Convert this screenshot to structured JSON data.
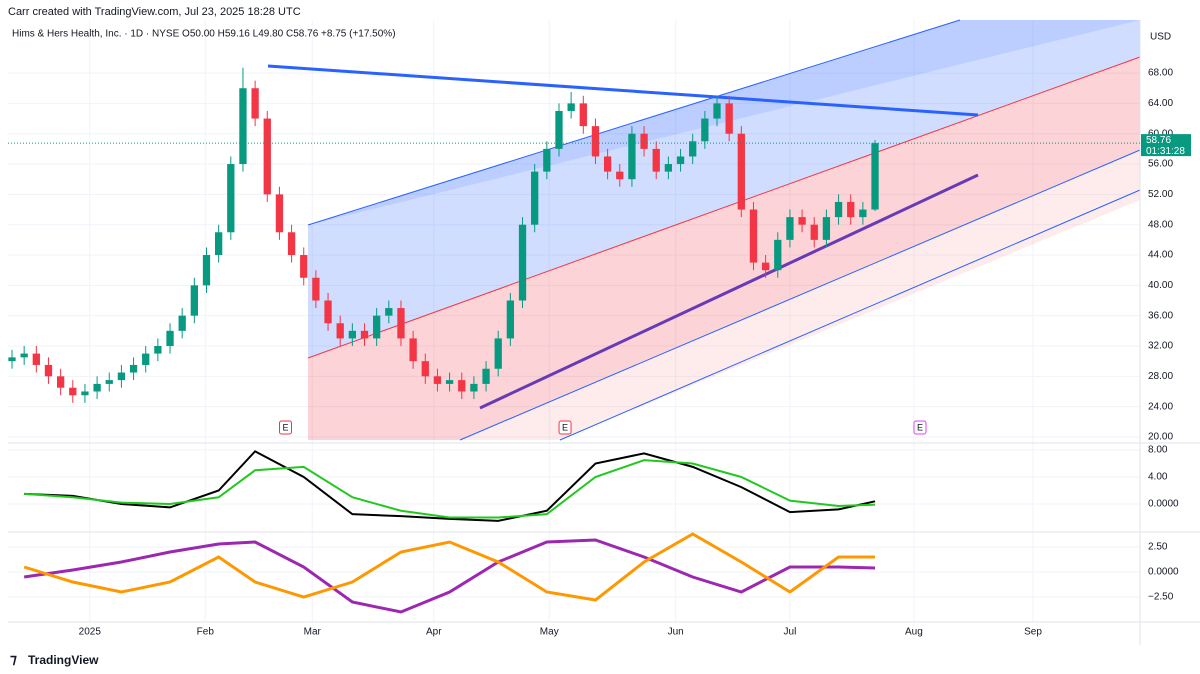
{
  "header": "Carr created with TradingView.com, Jul 23, 2025 18:28 UTC",
  "legend": "Hims & Hers Health, Inc. · 1D · NYSE  O50.00  H59.16  L49.80  C58.76  +8.75 (+17.50%)",
  "currency": "USD",
  "footer": "TradingView",
  "chart_data": {
    "type": "candlestick",
    "xlim": [
      -0.33,
      92.8
    ],
    "xticks": [
      {
        "value": 6.4,
        "label": "2025"
      },
      {
        "value": 15.9,
        "label": "Feb"
      },
      {
        "value": 24.7,
        "label": "Mar"
      },
      {
        "value": 34.7,
        "label": "Apr"
      },
      {
        "value": 44.2,
        "label": "May"
      },
      {
        "value": 54.6,
        "label": "Jun"
      },
      {
        "value": 64.0,
        "label": "Jul"
      },
      {
        "value": 74.2,
        "label": "Aug"
      },
      {
        "value": 84.0,
        "label": "Sep"
      }
    ],
    "ylim": [
      19.6,
      75
    ],
    "yticks": [
      {
        "value": 68,
        "label": "68.00"
      },
      {
        "value": 64,
        "label": "64.00"
      },
      {
        "value": 60,
        "label": "60.00"
      },
      {
        "value": 56,
        "label": "56.00"
      },
      {
        "value": 52,
        "label": "52.00"
      },
      {
        "value": 48,
        "label": "48.00"
      },
      {
        "value": 44,
        "label": "44.00"
      },
      {
        "value": 40,
        "label": "40.00"
      },
      {
        "value": 36,
        "label": "36.00"
      },
      {
        "value": 32,
        "label": "32.00"
      },
      {
        "value": 28,
        "label": "28.00"
      },
      {
        "value": 24,
        "label": "24.00"
      },
      {
        "value": 20,
        "label": "20.00"
      }
    ],
    "up_color": "#089981",
    "down_color": "#f23645",
    "open": [
      30,
      30.5,
      31,
      29.5,
      28,
      26.5,
      25.5,
      26,
      27,
      27.5,
      28.5,
      29.5,
      31,
      32,
      34,
      36,
      40,
      44,
      47,
      56,
      66,
      62,
      52,
      47,
      44,
      41,
      38,
      35,
      33,
      34,
      33,
      36,
      37,
      33,
      30,
      28,
      27,
      27.5,
      26,
      27,
      29,
      33,
      38,
      48,
      55,
      58,
      63,
      64,
      61,
      57,
      55,
      54,
      60,
      58,
      55,
      56,
      57,
      59,
      62,
      64,
      60,
      50,
      43,
      42,
      46,
      49,
      48,
      46,
      49,
      51,
      49,
      50
    ],
    "high": [
      31.5,
      32,
      32,
      30.5,
      29,
      27.5,
      27,
      28,
      28.5,
      29.5,
      30.5,
      32,
      33,
      35,
      37,
      41,
      45,
      48,
      57,
      68.7,
      67,
      63,
      53,
      48,
      45,
      42,
      39,
      36,
      35,
      35,
      37,
      38,
      38,
      34,
      31,
      29,
      28.5,
      28.5,
      28,
      30,
      34,
      39,
      49,
      56,
      59,
      64,
      65.5,
      65,
      62,
      58,
      56,
      61,
      61,
      59,
      57,
      58,
      60,
      63,
      65,
      65,
      61,
      51,
      44,
      47,
      50,
      50,
      49,
      50,
      52,
      52,
      51,
      59.16
    ],
    "low": [
      29,
      29.5,
      28.5,
      27,
      25.5,
      24.5,
      24.5,
      25,
      26,
      26.5,
      27.5,
      28.5,
      30,
      31,
      33,
      35,
      39,
      43,
      46,
      55,
      61,
      51,
      46,
      43,
      40,
      37,
      34,
      32,
      32,
      32,
      32,
      35,
      32,
      29,
      27,
      26,
      26,
      25,
      25,
      26,
      28,
      32,
      37,
      47,
      54,
      57,
      62,
      60,
      56,
      54,
      53,
      53,
      57,
      54,
      54,
      55,
      56,
      58,
      61,
      59,
      49,
      42,
      41,
      41,
      45,
      47,
      45,
      45,
      48,
      48,
      48,
      49.8
    ],
    "close": [
      30.5,
      31,
      29.5,
      28,
      26.5,
      25.5,
      26,
      27,
      27.5,
      28.5,
      29.5,
      31,
      32,
      34,
      36,
      40,
      44,
      47,
      56,
      66,
      62,
      52,
      47,
      44,
      41,
      38,
      35,
      33,
      34,
      33,
      36,
      37,
      33,
      30,
      28,
      27,
      27.5,
      26,
      27,
      29,
      33,
      38,
      48,
      55,
      58,
      63,
      64,
      61,
      57,
      55,
      54,
      60,
      58,
      55,
      56,
      57,
      59,
      62,
      64,
      60,
      50,
      43,
      42,
      46,
      49,
      48,
      46,
      49,
      51,
      49,
      50,
      58.76
    ],
    "last_price": {
      "value": 58.76,
      "label": "58.76",
      "countdown": "01:31:28"
    },
    "earnings": [
      {
        "label": "E",
        "x": 22.5
      },
      {
        "label": "E",
        "x": 45.5
      },
      {
        "label": "E",
        "x": 74.7
      }
    ],
    "macd": {
      "ylim": [
        -3.85,
        8.74
      ],
      "yticks": [
        {
          "value": 8,
          "label": "8.00"
        },
        {
          "value": 4,
          "label": "4.00"
        },
        {
          "value": 0,
          "label": "0.0000"
        }
      ],
      "x": [
        1,
        5,
        9,
        13,
        17,
        20,
        24,
        28,
        32,
        36,
        40,
        44,
        48,
        52,
        56,
        60,
        64,
        68,
        71
      ],
      "series": [
        {
          "color": "#000000",
          "values": [
            1.5,
            1.2,
            0,
            -0.5,
            2,
            7.8,
            4,
            -1.5,
            -1.8,
            -2.2,
            -2.5,
            -1,
            6,
            7.5,
            5.5,
            2.5,
            -1.2,
            -0.8,
            0.4
          ]
        },
        {
          "color": "#22c81e",
          "values": [
            1.5,
            1.0,
            0.2,
            0,
            1,
            5,
            5.5,
            1,
            -1,
            -2,
            -2,
            -1.5,
            4,
            6.5,
            6,
            4,
            0.5,
            -0.3,
            -0.1
          ]
        }
      ]
    },
    "osc": {
      "ylim": [
        -5,
        4
      ],
      "yticks": [
        {
          "value": 2.5,
          "label": "2.50"
        },
        {
          "value": 0,
          "label": "0.0000"
        },
        {
          "value": -2.5,
          "label": "−2.50"
        }
      ],
      "x": [
        1,
        5,
        9,
        13,
        17,
        20,
        24,
        28,
        32,
        36,
        40,
        44,
        48,
        52,
        56,
        60,
        64,
        68,
        71
      ],
      "series": [
        {
          "color": "#9c27b0",
          "values": [
            -0.5,
            0.2,
            1.0,
            2.0,
            2.8,
            3.0,
            0.5,
            -3,
            -4,
            -2,
            1,
            3,
            3.2,
            1.5,
            -0.5,
            -2,
            0.5,
            0.5,
            0.4
          ]
        },
        {
          "color": "#ff9800",
          "values": [
            0.5,
            -1,
            -2,
            -1,
            1.5,
            -1,
            -2.5,
            -1,
            2,
            3,
            1,
            -2,
            -2.8,
            1,
            3.8,
            1,
            -2,
            1.5,
            1.5
          ]
        }
      ]
    }
  }
}
